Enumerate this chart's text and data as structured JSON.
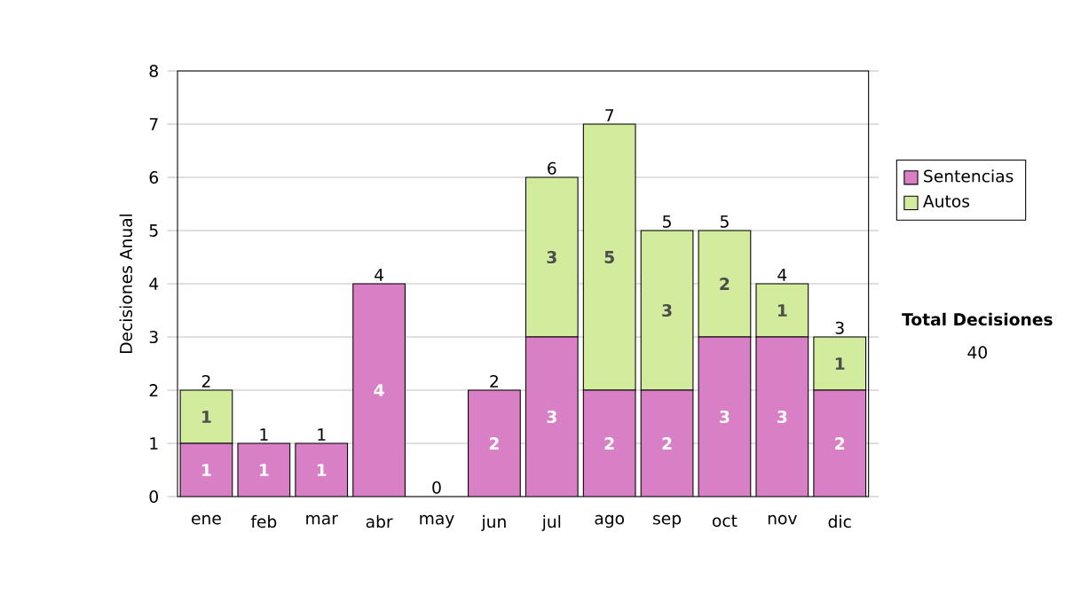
{
  "chart_data": {
    "type": "bar",
    "stacked": true,
    "ylabel": "Decisiones Anual",
    "categories": [
      "ene",
      "feb",
      "mar",
      "abr",
      "may",
      "jun",
      "jul",
      "ago",
      "sep",
      "oct",
      "nov",
      "dic"
    ],
    "series": [
      {
        "name": "Sentencias",
        "color": "#d97fc6",
        "values": [
          1,
          1,
          1,
          4,
          0,
          2,
          3,
          2,
          2,
          3,
          3,
          2
        ],
        "value_labels": [
          "1",
          "1",
          "1",
          "4",
          null,
          "2",
          "3",
          "2",
          "2",
          "3",
          "3",
          "2"
        ]
      },
      {
        "name": "Autos",
        "color": "#d3eb9d",
        "values": [
          1,
          0,
          0,
          0,
          0,
          0,
          3,
          5,
          3,
          2,
          1,
          1
        ],
        "value_labels": [
          "1",
          null,
          null,
          null,
          null,
          null,
          "3",
          "5",
          "3",
          "2",
          "1",
          "1"
        ]
      }
    ],
    "totals": [
      "2",
      "1",
      "1",
      "4",
      "0",
      "2",
      "6",
      "7",
      "5",
      "5",
      "4",
      "3"
    ],
    "ylim": [
      0,
      8
    ],
    "yticks": [
      0,
      1,
      2,
      3,
      4,
      5,
      6,
      7,
      8
    ],
    "grid": "y",
    "legend": "right",
    "annotations": [
      "Total Decisiones",
      "40"
    ]
  }
}
